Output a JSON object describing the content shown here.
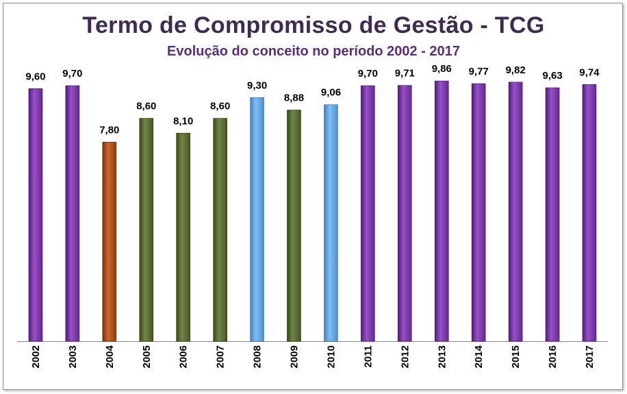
{
  "chart_data": {
    "type": "bar",
    "title": "Termo de Compromisso de Gestão - TCG",
    "subtitle": "Evolução do conceito no período 2002 - 2017",
    "xlabel": "",
    "ylabel": "",
    "ylim": [
      0,
      10
    ],
    "grid": false,
    "legend": "none",
    "categories": [
      "2002",
      "2003",
      "2004",
      "2005",
      "2006",
      "2007",
      "2008",
      "2009",
      "2010",
      "2011",
      "2012",
      "2013",
      "2014",
      "2015",
      "2016",
      "2017"
    ],
    "values": [
      9.6,
      9.7,
      7.8,
      8.6,
      8.1,
      8.6,
      9.3,
      8.88,
      9.06,
      9.7,
      9.71,
      9.86,
      9.77,
      9.82,
      9.63,
      9.74
    ],
    "value_labels": [
      "9,60",
      "9,70",
      "7,80",
      "8,60",
      "8,10",
      "8,60",
      "9,30",
      "8,88",
      "9,06",
      "9,70",
      "9,71",
      "9,86",
      "9,77",
      "9,82",
      "9,63",
      "9,74"
    ],
    "bar_colors": [
      "#7030a0",
      "#7030a0",
      "#a0460e",
      "#4f6228",
      "#4f6228",
      "#4f6228",
      "#5b9bd5",
      "#4f6228",
      "#5b9bd5",
      "#7030a0",
      "#7030a0",
      "#7030a0",
      "#7030a0",
      "#7030a0",
      "#7030a0",
      "#7030a0"
    ]
  }
}
